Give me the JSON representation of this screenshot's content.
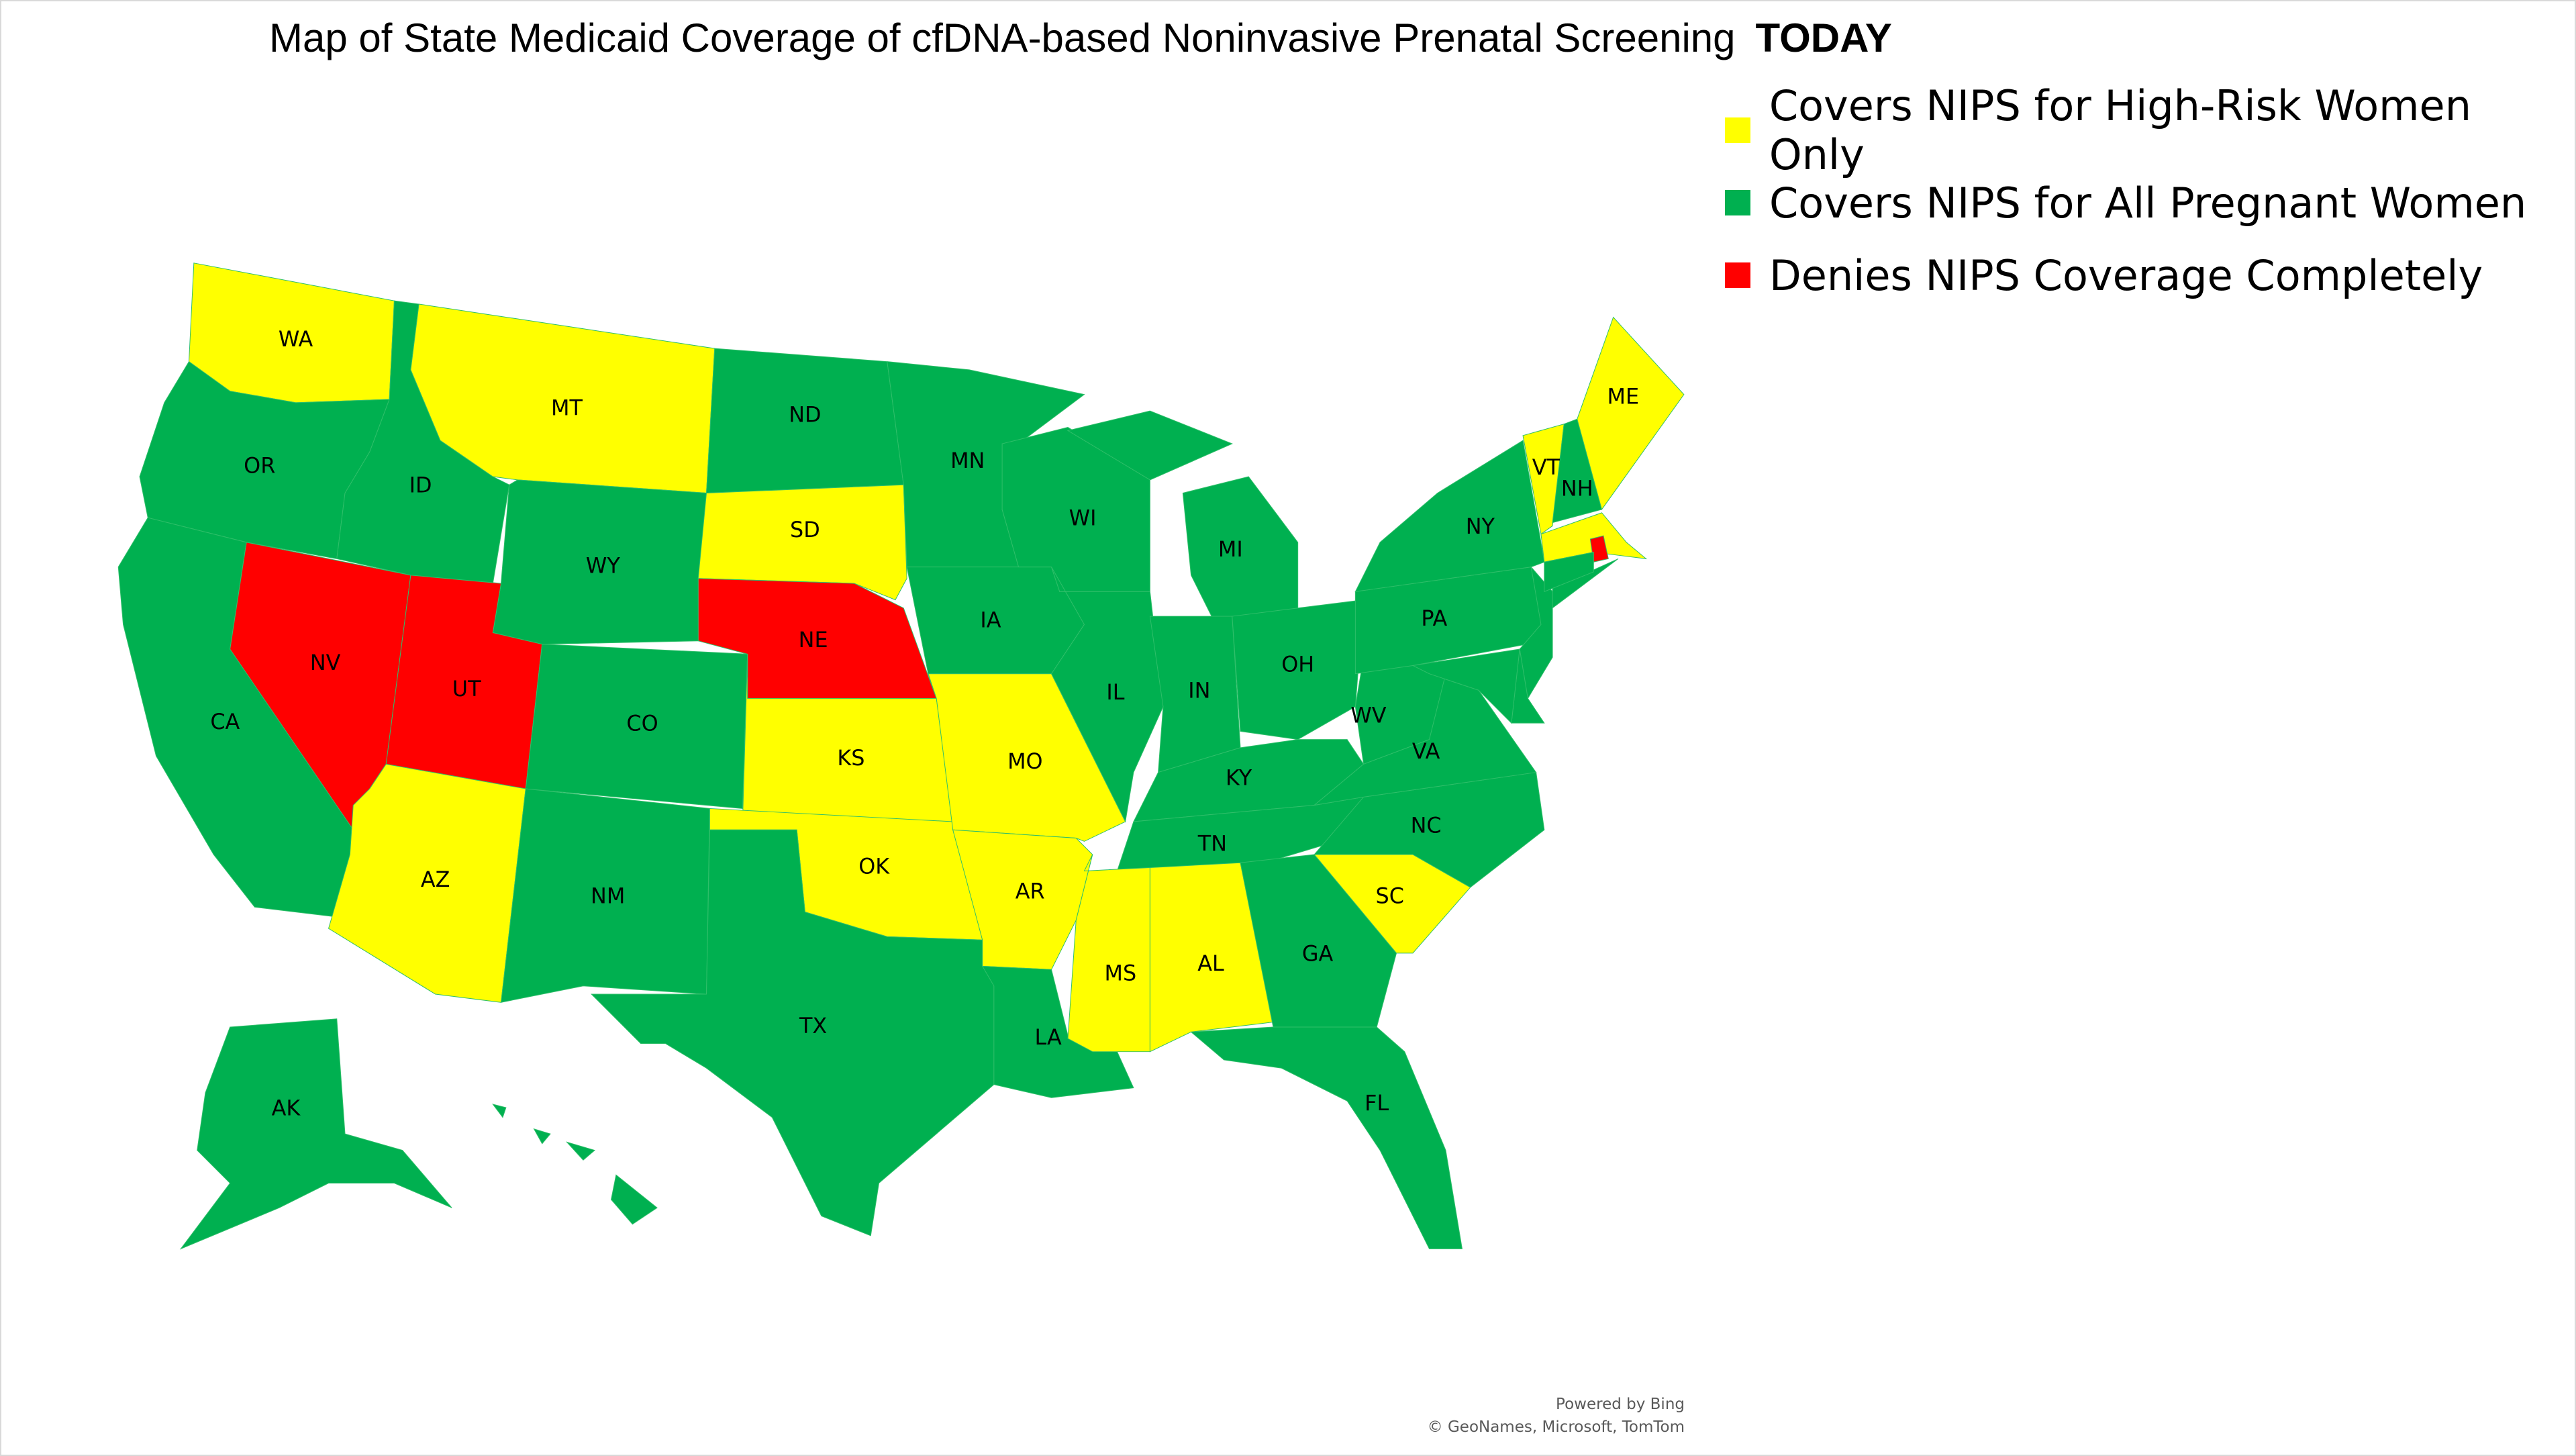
{
  "title": {
    "text": "Map of State Medicaid Coverage of cfDNA-based Noninvasive Prenatal Screening",
    "emphasis": "TODAY"
  },
  "colors": {
    "high_risk_only": "#FFFF00",
    "all_women": "#00B050",
    "denies": "#FF0000"
  },
  "legend": [
    {
      "key": "high_risk_only",
      "label": "Covers NIPS for High-Risk Women Only"
    },
    {
      "key": "all_women",
      "label": "Covers NIPS for All Pregnant Women"
    },
    {
      "key": "denies",
      "label": "Denies NIPS Coverage Completely"
    }
  ],
  "states": {
    "WA": "high_risk_only",
    "OR": "all_women",
    "CA": "all_women",
    "NV": "denies",
    "ID": "all_women",
    "MT": "high_risk_only",
    "WY": "all_women",
    "UT": "denies",
    "AZ": "high_risk_only",
    "CO": "all_women",
    "NM": "all_women",
    "ND": "all_women",
    "SD": "high_risk_only",
    "NE": "denies",
    "KS": "high_risk_only",
    "OK": "high_risk_only",
    "TX": "all_women",
    "MN": "all_women",
    "IA": "all_women",
    "MO": "high_risk_only",
    "AR": "high_risk_only",
    "LA": "all_women",
    "WI": "all_women",
    "IL": "all_women",
    "MI": "all_women",
    "IN": "all_women",
    "OH": "all_women",
    "KY": "all_women",
    "TN": "all_women",
    "MS": "high_risk_only",
    "AL": "high_risk_only",
    "GA": "all_women",
    "FL": "all_women",
    "SC": "high_risk_only",
    "NC": "all_women",
    "VA": "all_women",
    "WV": "all_women",
    "PA": "all_women",
    "NY": "all_women",
    "NJ": "all_women",
    "DE": "all_women",
    "MD": "all_women",
    "VT": "high_risk_only",
    "NH": "all_women",
    "ME": "high_risk_only",
    "MA": "high_risk_only",
    "RI": "denies",
    "CT": "all_women",
    "AK": "all_women",
    "HI": "all_women"
  },
  "labels": [
    "WA",
    "OR",
    "CA",
    "NV",
    "ID",
    "MT",
    "WY",
    "UT",
    "AZ",
    "CO",
    "NM",
    "ND",
    "SD",
    "NE",
    "KS",
    "OK",
    "TX",
    "MN",
    "IA",
    "MO",
    "AR",
    "LA",
    "WI",
    "IL",
    "MI",
    "IN",
    "OH",
    "KY",
    "TN",
    "MS",
    "AL",
    "GA",
    "FL",
    "SC",
    "NC",
    "VA",
    "WV",
    "PA",
    "NY",
    "VT",
    "NH",
    "ME",
    "AK"
  ],
  "credits": {
    "line1": "Powered by Bing",
    "line2": "© GeoNames, Microsoft, TomTom"
  }
}
